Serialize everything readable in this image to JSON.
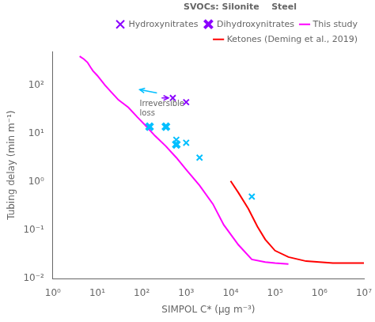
{
  "chart_data": {
    "type": "scatter",
    "xlabel": "SIMPOL C* (μg m⁻³)",
    "ylabel": "Tubing delay (min m⁻¹)",
    "log": true,
    "xlim": [
      1,
      10000000
    ],
    "ylim": [
      0.01,
      501.18723362727246
    ],
    "xticks": [
      {
        "value": 1,
        "label": "10⁰"
      },
      {
        "value": 10,
        "label": "10¹"
      },
      {
        "value": 100,
        "label": "10²"
      },
      {
        "value": 1000,
        "label": "10³"
      },
      {
        "value": 10000,
        "label": "10⁴"
      },
      {
        "value": 100000,
        "label": "10⁵"
      },
      {
        "value": 1000000,
        "label": "10⁶"
      },
      {
        "value": 10000000,
        "label": "10⁷"
      }
    ],
    "yticks": [
      {
        "value": 0.01,
        "label": "10⁻²"
      },
      {
        "value": 0.1,
        "label": "10⁻¹"
      },
      {
        "value": 1,
        "label": "10⁰"
      },
      {
        "value": 10,
        "label": "10¹"
      },
      {
        "value": 100,
        "label": "10²"
      }
    ],
    "grid": false,
    "legend": "upper right",
    "legend_title": "SVOCs: Silonite    Steel",
    "series": [
      {
        "name": "Hydroxynitrates",
        "type": "scatter",
        "color": "#8B00FF",
        "marker": "x",
        "x": [
          500,
          1000
        ],
        "values": [
          55,
          45
        ]
      },
      {
        "name": "Dihydroxynitrates",
        "type": "scatter",
        "color": "#8B00FF",
        "marker": "bold_x",
        "x": [],
        "values": []
      },
      {
        "name": "This study",
        "type": "line",
        "color": "#FF00FF",
        "x": [
          4,
          5,
          6,
          7,
          8,
          10,
          15,
          20,
          30,
          50,
          80,
          120,
          200,
          350,
          600,
          1000,
          2000,
          4000,
          7000,
          15000,
          30000,
          60000,
          100000,
          200000
        ],
        "values": [
          400,
          350,
          300,
          240,
          200,
          160,
          100,
          75,
          50,
          35,
          22,
          15,
          9,
          5.5,
          3.2,
          1.8,
          0.85,
          0.35,
          0.13,
          0.05,
          0.025,
          0.022,
          0.021,
          0.02
        ]
      },
      {
        "name": "Ketones (Deming et al., 2019)",
        "type": "line",
        "color": "#FF0000",
        "x": [
          10000,
          15000,
          25000,
          40000,
          60000,
          100000,
          200000,
          500000,
          1000000,
          2000000,
          5000000,
          10000000
        ],
        "values": [
          1.05,
          0.6,
          0.28,
          0.12,
          0.065,
          0.038,
          0.028,
          0.023,
          0.022,
          0.021,
          0.021,
          0.021
        ]
      },
      {
        "type": "scatter",
        "color": "#00BFFF",
        "marker": "x",
        "x": [
          600,
          1000,
          2000,
          30000
        ],
        "values": [
          7.5,
          6.5,
          3.2,
          0.5
        ]
      },
      {
        "type": "scatter",
        "color": "#00BFFF",
        "marker": "bold_x",
        "x": [
          150,
          350
        ],
        "values": [
          14,
          14
        ]
      },
      {
        "type": "scatter",
        "color": "#00BFFF",
        "marker": "bold_x",
        "x": [
          600
        ],
        "values": [
          6.0
        ]
      }
    ],
    "annotations": [
      {
        "text": "Irreversible\nloss",
        "x": 90,
        "y": 50
      },
      {
        "x": 220,
        "y": 70,
        "x_end": 90,
        "y_end": 82,
        "color": "#00BFFF"
      },
      {
        "x": 280,
        "y": 55,
        "x_end": 400,
        "y_end": 55,
        "color": "#8B00FF"
      }
    ]
  }
}
